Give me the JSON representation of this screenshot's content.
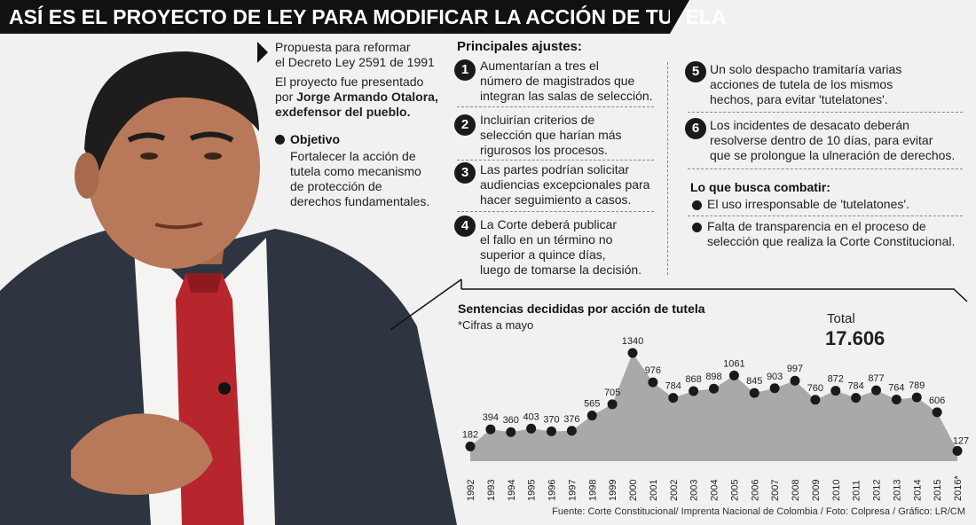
{
  "title": "ASÍ ES EL PROYECTO DE LEY PARA MODIFICAR LA ACCIÓN DE TUTELA",
  "intro": {
    "line1": "Propuesta para reformar",
    "line2": "el Decreto Ley 2591 de 1991",
    "line3": "El proyecto fue presentado",
    "line4_prefix": "por ",
    "line4_name": "Jorge Armando Otalora,",
    "line5": "exdefensor del pueblo."
  },
  "objective": {
    "heading": "Objetivo",
    "lines": [
      "Fortalecer la acción de",
      "tutela como mecanismo",
      "de protección de",
      "derechos fundamentales."
    ]
  },
  "adjustments": {
    "heading": "Principales ajustes:",
    "items": [
      {
        "n": "1",
        "lines": [
          "Aumentarían a tres el",
          "número de magistrados que",
          "integran las salas de selección."
        ]
      },
      {
        "n": "2",
        "lines": [
          "Incluirían criterios de",
          "selección que harían más",
          "rigurosos los procesos."
        ]
      },
      {
        "n": "3",
        "lines": [
          "Las partes podrían solicitar",
          "audiencias excepcionales para",
          "hacer seguimiento a casos."
        ]
      },
      {
        "n": "4",
        "lines": [
          "La Corte deberá publicar",
          "el fallo en un término no",
          "superior a quince días,",
          "luego de tomarse la decisión."
        ]
      },
      {
        "n": "5",
        "lines": [
          "Un solo despacho tramitaría varias",
          "acciones de tutela de los mismos",
          "hechos, para evitar 'tutelatones'."
        ]
      },
      {
        "n": "6",
        "lines": [
          "Los incidentes de desacato deberán",
          "resolverse dentro de 10 días, para evitar",
          "que se prolongue la ulneración de derechos."
        ]
      }
    ]
  },
  "combat": {
    "heading": "Lo que busca combatir:",
    "items": [
      {
        "lines": [
          "El uso irresponsable de 'tutelatones'."
        ]
      },
      {
        "lines": [
          "Falta de transparencia en el proceso de",
          "selección que realiza la Corte Constitucional."
        ]
      }
    ]
  },
  "chart_data": {
    "type": "area",
    "title": "Sentencias decididas por acción de tutela",
    "subtitle": "*Cifras a mayo",
    "total_label": "Total",
    "total_value": "17.606",
    "categories": [
      "1992",
      "1993",
      "1994",
      "1995",
      "1996",
      "1997",
      "1998",
      "1999",
      "2000",
      "2001",
      "2002",
      "2003",
      "2004",
      "2005",
      "2006",
      "2007",
      "2008",
      "2009",
      "2010",
      "2011",
      "2012",
      "2013",
      "2014",
      "2015",
      "2016*"
    ],
    "values": [
      182,
      394,
      360,
      403,
      370,
      376,
      565,
      705,
      1340,
      976,
      784,
      868,
      898,
      1061,
      845,
      903,
      997,
      760,
      872,
      784,
      877,
      764,
      789,
      606,
      127
    ],
    "xlabel": "",
    "ylabel": "",
    "ylim": [
      0,
      1340
    ],
    "grid": false,
    "colors": {
      "area": "#a9a9a9",
      "marker": "#1a1a1a"
    }
  },
  "source": "Fuente: Corte Constitucional/ Imprenta Nacional de Colombia / Foto: Colpresa / Gráfico: LR/CM"
}
